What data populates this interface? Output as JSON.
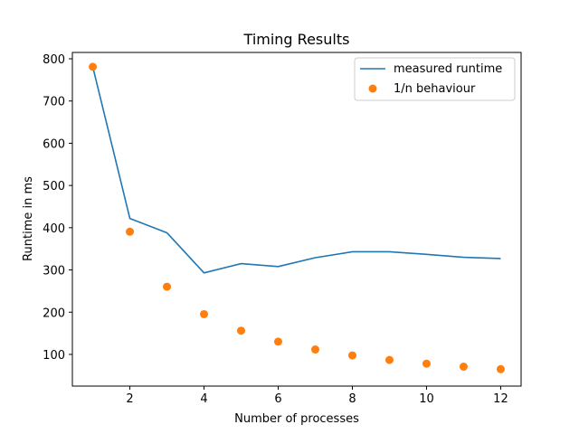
{
  "chart_data": {
    "type": "line",
    "title": "Timing Results",
    "xlabel": "Number of processes",
    "ylabel": "Runtime in ms",
    "xlim": [
      0.45,
      12.55
    ],
    "ylim": [
      25,
      815
    ],
    "xticks": [
      2,
      4,
      6,
      8,
      10,
      12
    ],
    "yticks": [
      100,
      200,
      300,
      400,
      500,
      600,
      700,
      800
    ],
    "grid": false,
    "legend_position": "top-right",
    "x": [
      1,
      2,
      3,
      4,
      5,
      6,
      7,
      8,
      9,
      10,
      11,
      12
    ],
    "series": [
      {
        "name": "measured runtime",
        "style": "line",
        "color": "#1f77b4",
        "values": [
          781,
          422,
          388,
          293,
          315,
          308,
          329,
          343,
          343,
          337,
          330,
          327
        ]
      },
      {
        "name": "1/n behaviour",
        "style": "points",
        "color": "#ff7f0e",
        "values": [
          781,
          390.5,
          260.3,
          195.3,
          156.2,
          130.2,
          111.6,
          97.6,
          86.8,
          78.1,
          71.0,
          65.1
        ]
      }
    ]
  }
}
